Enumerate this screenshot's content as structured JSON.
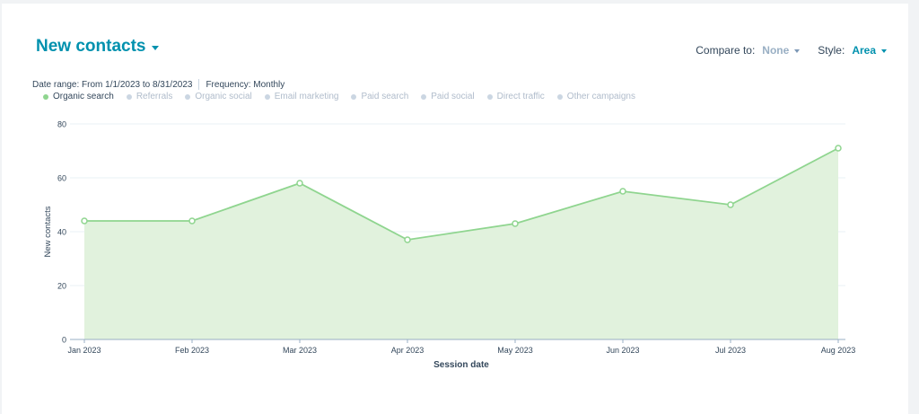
{
  "header": {
    "title": "New contacts",
    "compare_label": "Compare to:",
    "compare_value": "None",
    "style_label": "Style:",
    "style_value": "Area"
  },
  "meta": {
    "date_range": "Date range: From 1/1/2023 to 8/31/2023",
    "frequency": "Frequency: Monthly"
  },
  "legend": [
    {
      "label": "Organic search",
      "active": true
    },
    {
      "label": "Referrals",
      "active": false
    },
    {
      "label": "Organic social",
      "active": false
    },
    {
      "label": "Email marketing",
      "active": false
    },
    {
      "label": "Paid search",
      "active": false
    },
    {
      "label": "Paid social",
      "active": false
    },
    {
      "label": "Direct traffic",
      "active": false
    },
    {
      "label": "Other campaigns",
      "active": false
    }
  ],
  "colors": {
    "accent": "#0091ae",
    "series_line": "#8fd58f",
    "series_fill": "#e1f2dd",
    "text": "#33475b"
  },
  "chart_data": {
    "type": "area",
    "categories": [
      "Jan 2023",
      "Feb 2023",
      "Mar 2023",
      "Apr 2023",
      "May 2023",
      "Jun 2023",
      "Jul 2023",
      "Aug 2023"
    ],
    "series": [
      {
        "name": "Organic search",
        "values": [
          44,
          44,
          58,
          37,
          43,
          55,
          50,
          71
        ]
      }
    ],
    "xlabel": "Session date",
    "ylabel": "New contacts",
    "ylim": [
      0,
      80
    ],
    "yticks": [
      0,
      20,
      40,
      60,
      80
    ],
    "grid": true
  }
}
